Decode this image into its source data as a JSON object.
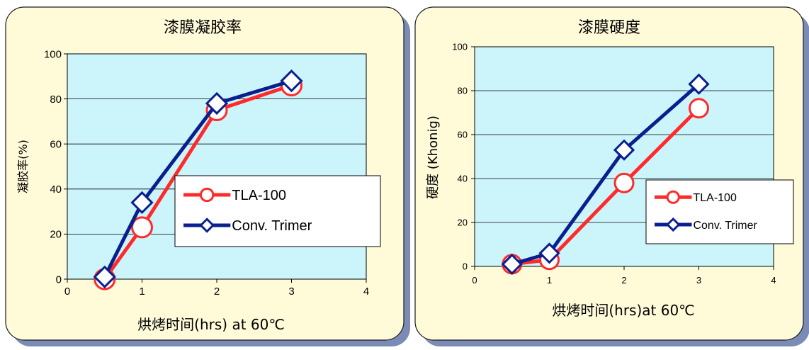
{
  "chart_data": [
    {
      "type": "line",
      "title": "漆膜凝胶率",
      "xlabel": "烘烤时间(hrs) at 60℃",
      "ylabel": "凝胶率(%)",
      "xlim": [
        0,
        4
      ],
      "ylim": [
        0,
        100
      ],
      "x_ticks": [
        "0",
        "1",
        "2",
        "3",
        "4"
      ],
      "y_ticks": [
        "0",
        "20",
        "40",
        "60",
        "80",
        "100"
      ],
      "grid": true,
      "legend_position": "center-right",
      "series": [
        {
          "name": "TLA-100",
          "color": "#ff2a2a",
          "marker": "circle",
          "x": [
            0.5,
            1,
            2,
            3
          ],
          "y": [
            0,
            23,
            75,
            86
          ]
        },
        {
          "name": "Conv. Trimer",
          "color": "#0a1f8f",
          "marker": "diamond",
          "x": [
            0.5,
            1,
            2,
            3
          ],
          "y": [
            1,
            34,
            78,
            88
          ]
        }
      ]
    },
    {
      "type": "line",
      "title": "漆膜硬度",
      "xlabel": "烘烤时间(hrs)at 60℃",
      "ylabel": "硬度 (Khonig)",
      "xlim": [
        0,
        4
      ],
      "ylim": [
        0,
        100
      ],
      "x_ticks": [
        "0",
        "1",
        "2",
        "3",
        "4"
      ],
      "y_ticks": [
        "0",
        "20",
        "40",
        "60",
        "80",
        "100"
      ],
      "grid": true,
      "legend_position": "lower-right",
      "series": [
        {
          "name": "TLA-100",
          "color": "#ff2a2a",
          "marker": "circle",
          "x": [
            0.5,
            1,
            2,
            3
          ],
          "y": [
            1,
            3,
            38,
            72
          ]
        },
        {
          "name": "Conv. Trimer",
          "color": "#0a1f8f",
          "marker": "diamond",
          "x": [
            0.5,
            1,
            2,
            3
          ],
          "y": [
            1,
            6,
            53,
            83
          ]
        }
      ]
    }
  ]
}
